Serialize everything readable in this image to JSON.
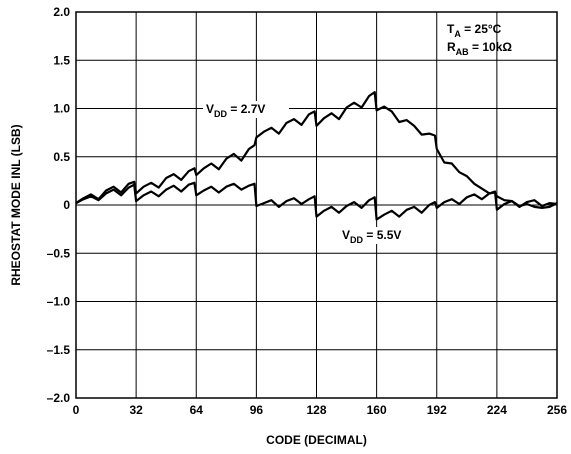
{
  "chart_data": {
    "type": "line",
    "xlabel": "CODE (DECIMAL)",
    "ylabel": "RHEOSTAT MODE INL (LSB)",
    "xlim": [
      0,
      256
    ],
    "ylim": [
      -2.0,
      2.0
    ],
    "x_ticks": [
      0,
      32,
      64,
      96,
      128,
      160,
      192,
      224,
      256
    ],
    "x_tick_labels": [
      "0",
      "32",
      "64",
      "96",
      "128",
      "160",
      "192",
      "224",
      "256"
    ],
    "y_ticks": [
      2.0,
      1.5,
      1.0,
      0.5,
      0,
      -0.5,
      -1.0,
      -1.5,
      -2.0
    ],
    "y_tick_labels": [
      "2.0",
      "1.5",
      "1.0",
      "0.5",
      "0",
      "–0.5",
      "–1.0",
      "–1.5",
      "–2.0"
    ],
    "grid": true,
    "conditions": {
      "ta_label": "T",
      "ta_sub": "A",
      "ta_value": " = 25°C",
      "rab_label": "R",
      "rab_sub": "AB",
      "rab_value": " = 10kΩ"
    },
    "series": [
      {
        "name_main": "V",
        "name_sub": "DD",
        "name_value": " = 2.7V",
        "values_xy": [
          [
            0,
            0.02
          ],
          [
            4,
            0.07
          ],
          [
            8,
            0.11
          ],
          [
            12,
            0.06
          ],
          [
            16,
            0.15
          ],
          [
            20,
            0.19
          ],
          [
            24,
            0.13
          ],
          [
            28,
            0.22
          ],
          [
            31,
            0.24
          ],
          [
            32,
            0.12
          ],
          [
            36,
            0.19
          ],
          [
            40,
            0.23
          ],
          [
            44,
            0.18
          ],
          [
            48,
            0.28
          ],
          [
            52,
            0.32
          ],
          [
            56,
            0.26
          ],
          [
            60,
            0.35
          ],
          [
            63,
            0.38
          ],
          [
            64,
            0.31
          ],
          [
            68,
            0.38
          ],
          [
            72,
            0.43
          ],
          [
            76,
            0.37
          ],
          [
            80,
            0.48
          ],
          [
            84,
            0.53
          ],
          [
            88,
            0.46
          ],
          [
            92,
            0.58
          ],
          [
            95,
            0.62
          ],
          [
            96,
            0.7
          ],
          [
            100,
            0.76
          ],
          [
            104,
            0.8
          ],
          [
            108,
            0.74
          ],
          [
            112,
            0.85
          ],
          [
            116,
            0.89
          ],
          [
            120,
            0.83
          ],
          [
            124,
            0.94
          ],
          [
            127,
            0.97
          ],
          [
            128,
            0.82
          ],
          [
            132,
            0.9
          ],
          [
            136,
            0.95
          ],
          [
            140,
            0.89
          ],
          [
            144,
            1.01
          ],
          [
            148,
            1.06
          ],
          [
            152,
            1.01
          ],
          [
            156,
            1.13
          ],
          [
            159,
            1.17
          ],
          [
            160,
            0.98
          ],
          [
            164,
            1.02
          ],
          [
            168,
            0.97
          ],
          [
            172,
            0.86
          ],
          [
            176,
            0.88
          ],
          [
            180,
            0.82
          ],
          [
            184,
            0.73
          ],
          [
            188,
            0.74
          ],
          [
            191,
            0.72
          ],
          [
            192,
            0.58
          ],
          [
            196,
            0.44
          ],
          [
            200,
            0.43
          ],
          [
            204,
            0.34
          ],
          [
            208,
            0.3
          ],
          [
            212,
            0.22
          ],
          [
            216,
            0.17
          ],
          [
            220,
            0.12
          ],
          [
            223,
            0.13
          ],
          [
            224,
            0.09
          ],
          [
            228,
            0.05
          ],
          [
            232,
            0.04
          ],
          [
            236,
            -0.01
          ],
          [
            240,
            0.01
          ],
          [
            244,
            -0.02
          ],
          [
            248,
            -0.03
          ],
          [
            252,
            -0.02
          ],
          [
            256,
            0.02
          ]
        ]
      },
      {
        "name_main": "V",
        "name_sub": "DD",
        "name_value": " = 5.5V",
        "values_xy": [
          [
            0,
            0.02
          ],
          [
            4,
            0.06
          ],
          [
            8,
            0.09
          ],
          [
            12,
            0.05
          ],
          [
            16,
            0.12
          ],
          [
            20,
            0.16
          ],
          [
            24,
            0.1
          ],
          [
            28,
            0.18
          ],
          [
            31,
            0.21
          ],
          [
            32,
            0.04
          ],
          [
            36,
            0.1
          ],
          [
            40,
            0.14
          ],
          [
            44,
            0.09
          ],
          [
            48,
            0.16
          ],
          [
            52,
            0.2
          ],
          [
            56,
            0.14
          ],
          [
            60,
            0.21
          ],
          [
            63,
            0.23
          ],
          [
            64,
            0.1
          ],
          [
            68,
            0.15
          ],
          [
            72,
            0.19
          ],
          [
            76,
            0.13
          ],
          [
            80,
            0.19
          ],
          [
            84,
            0.22
          ],
          [
            88,
            0.16
          ],
          [
            92,
            0.2
          ],
          [
            95,
            0.22
          ],
          [
            96,
            -0.01
          ],
          [
            100,
            0.02
          ],
          [
            104,
            0.05
          ],
          [
            108,
            -0.02
          ],
          [
            112,
            0.04
          ],
          [
            116,
            0.07
          ],
          [
            120,
            0.01
          ],
          [
            124,
            0.06
          ],
          [
            127,
            0.09
          ],
          [
            128,
            -0.12
          ],
          [
            132,
            -0.06
          ],
          [
            136,
            -0.02
          ],
          [
            140,
            -0.08
          ],
          [
            144,
            -0.01
          ],
          [
            148,
            0.03
          ],
          [
            152,
            -0.03
          ],
          [
            156,
            0.05
          ],
          [
            159,
            0.08
          ],
          [
            160,
            -0.15
          ],
          [
            164,
            -0.1
          ],
          [
            168,
            -0.06
          ],
          [
            172,
            -0.12
          ],
          [
            176,
            -0.05
          ],
          [
            180,
            -0.02
          ],
          [
            184,
            -0.08
          ],
          [
            188,
            0.0
          ],
          [
            191,
            0.03
          ],
          [
            192,
            -0.03
          ],
          [
            196,
            0.03
          ],
          [
            200,
            0.06
          ],
          [
            204,
            0.01
          ],
          [
            208,
            0.08
          ],
          [
            212,
            0.11
          ],
          [
            216,
            0.06
          ],
          [
            220,
            0.12
          ],
          [
            223,
            0.14
          ],
          [
            224,
            -0.05
          ],
          [
            228,
            0.01
          ],
          [
            232,
            0.04
          ],
          [
            236,
            -0.02
          ],
          [
            240,
            0.03
          ],
          [
            244,
            0.05
          ],
          [
            248,
            -0.01
          ],
          [
            252,
            0.02
          ],
          [
            256,
            0.01
          ]
        ]
      }
    ]
  }
}
